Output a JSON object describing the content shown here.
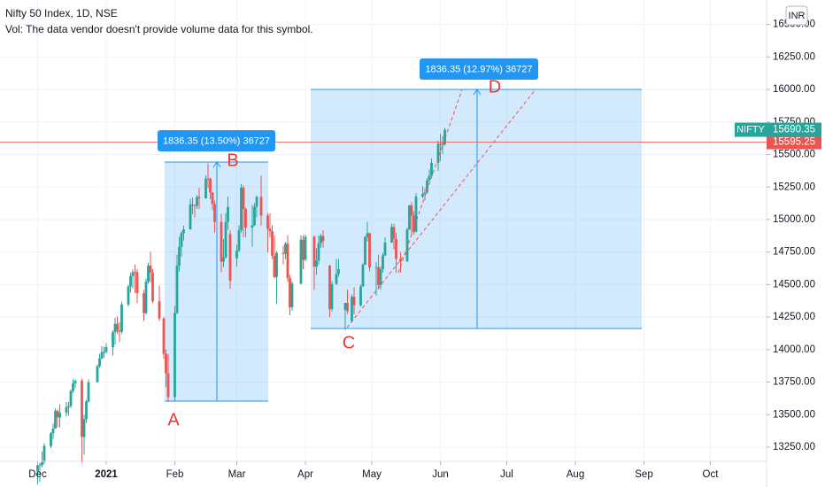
{
  "header": {
    "title": "Nifty 50 Index, 1D, NSE",
    "volume_note": "Vol: The data vendor doesn't provide volume data for this symbol.",
    "currency": "INR"
  },
  "chart_data": {
    "type": "candlestick",
    "symbol": "NIFTY",
    "last_price": 15690.35,
    "reference_price": 15595.25,
    "up_color": "#26a69a",
    "down_color": "#ef5350",
    "grid": true,
    "xlim": [
      -17,
      329.4
    ],
    "ylim": [
      13141,
      16688
    ],
    "xticks": [
      {
        "value": 0,
        "label": "Dec"
      },
      {
        "value": 31,
        "label": "2021"
      },
      {
        "value": 62,
        "label": "Feb"
      },
      {
        "value": 90,
        "label": "Mar"
      },
      {
        "value": 121,
        "label": "Apr"
      },
      {
        "value": 151,
        "label": "May"
      },
      {
        "value": 182,
        "label": "Jun"
      },
      {
        "value": 212,
        "label": "Jul"
      },
      {
        "value": 243,
        "label": "Aug"
      },
      {
        "value": 274,
        "label": "Sep"
      },
      {
        "value": 304,
        "label": "Oct"
      }
    ],
    "yticks": [
      {
        "value": 13250,
        "label": "13250.00"
      },
      {
        "value": 13500,
        "label": "13500.00"
      },
      {
        "value": 13750,
        "label": "13750.00"
      },
      {
        "value": 14000,
        "label": "14000.00"
      },
      {
        "value": 14250,
        "label": "14250.00"
      },
      {
        "value": 14500,
        "label": "14500.00"
      },
      {
        "value": 14750,
        "label": "14750.00"
      },
      {
        "value": 15000,
        "label": "15000.00"
      },
      {
        "value": 15250,
        "label": "15250.00"
      },
      {
        "value": 15500,
        "label": "15500.00"
      },
      {
        "value": 15750,
        "label": "15750.00"
      },
      {
        "value": 16000,
        "label": "16000.00"
      },
      {
        "value": 16250,
        "label": "16250.00"
      },
      {
        "value": 16500,
        "label": "16500.00"
      }
    ],
    "x": [
      0,
      1,
      2,
      3,
      6,
      7,
      8,
      9,
      10,
      13,
      14,
      15,
      16,
      17,
      20,
      21,
      22,
      23,
      27,
      28,
      29,
      30,
      31,
      34,
      35,
      36,
      37,
      38,
      41,
      42,
      43,
      44,
      45,
      48,
      49,
      50,
      51,
      52,
      55,
      57,
      58,
      59,
      62,
      63,
      64,
      65,
      66,
      69,
      70,
      71,
      72,
      73,
      76,
      77,
      78,
      79,
      80,
      83,
      84,
      85,
      86,
      87,
      90,
      91,
      92,
      93,
      94,
      97,
      98,
      99,
      101,
      104,
      105,
      106,
      107,
      108,
      111,
      112,
      113,
      114,
      115,
      119,
      120,
      121,
      125,
      126,
      127,
      128,
      129,
      132,
      133,
      135,
      136,
      139,
      140,
      142,
      143,
      146,
      147,
      148,
      149,
      150,
      153,
      154,
      155,
      156,
      157,
      160,
      161,
      162,
      164,
      167,
      168,
      169,
      170,
      171,
      174,
      175,
      176,
      177,
      178,
      181,
      182,
      183,
      184
    ],
    "open": [
      13062,
      13109,
      13113,
      13134,
      13259,
      13356,
      13393,
      13529,
      13478,
      13514,
      13558,
      13567,
      13682,
      13741,
      13761,
      13328,
      13466,
      13601,
      13749,
      13873,
      13932,
      13982,
      13982,
      14019,
      14133,
      14199,
      14146,
      14137,
      14347,
      14485,
      14564,
      14596,
      14595,
      14434,
      14281,
      14522,
      14645,
      14590,
      14372,
      14239,
      13968,
      13818,
      13635,
      14281,
      14647,
      14790,
      14896,
      14924,
      15116,
      15110,
      15106,
      15173,
      15163,
      15315,
      15314,
      15209,
      15119,
      14982,
      14676,
      14708,
      14982,
      14889,
      14702,
      14761,
      14919,
      15245,
      15081,
      14938,
      14956,
      15098,
      15174,
      15031,
      14929,
      14910,
      14721,
      14558,
      14744,
      14736,
      14814,
      14549,
      14325,
      14507,
      14845,
      14691,
      14867,
      14638,
      14684,
      14819,
      14873,
      14645,
      14311,
      14505,
      14581,
      14306,
      14359,
      14219,
      14406,
      14341,
      14485,
      14653,
      14865,
      14895,
      14631,
      14634,
      14496,
      14618,
      14724,
      14823,
      14942,
      14851,
      14697,
      14678,
      14923,
      15108,
      15030,
      14906,
      15176,
      15197,
      15208,
      15301,
      15338,
      15436,
      15583,
      15575,
      15577
    ],
    "high": [
      13128,
      13128,
      13217,
      13280,
      13366,
      13432,
      13548,
      13540,
      13579,
      13597,
      13597,
      13693,
      13773,
      13771,
      13777,
      13498,
      13613,
      13771,
      13885,
      13967,
      14025,
      14024,
      14050,
      14148,
      14244,
      14257,
      14211,
      14368,
      14498,
      14590,
      14617,
      14653,
      14618,
      14459,
      14547,
      14667,
      14753,
      14619,
      14492,
      14252,
      14001,
      13966,
      14336,
      14731,
      14868,
      14913,
      14953,
      15160,
      15168,
      15115,
      15188,
      15244,
      15340,
      15432,
      15324,
      15211,
      15144,
      15045,
      14850,
      15051,
      15176,
      14919,
      14806,
      14956,
      15273,
      15260,
      15092,
      15111,
      15126,
      15184,
      15337,
      15051,
      15047,
      14956,
      14875,
      14757,
      14798,
      14828,
      14878,
      14575,
      14526,
      14877,
      14877,
      14884,
      14879,
      14779,
      14879,
      14890,
      14918,
      14652,
      14528,
      14697,
      14697,
      14358,
      14461,
      14424,
      14479,
      14499,
      14667,
      14873,
      14983,
      14900,
      14673,
      14731,
      14639,
      14744,
      14863,
      14967,
      14966,
      14900,
      14749,
      14938,
      15114,
      15133,
      15063,
      15201,
      15256,
      15241,
      15319,
      15384,
      15469,
      15606,
      15660,
      15641,
      15705
    ],
    "low": [
      12963,
      12983,
      13097,
      13120,
      13241,
      13312,
      13392,
      13403,
      13402,
      13486,
      13493,
      13549,
      13665,
      13705,
      13131,
      13192,
      13437,
      13593,
      13749,
      13859,
      13925,
      13937,
      13970,
      13954,
      14040,
      14121,
      14058,
      14121,
      14330,
      14438,
      14471,
      14435,
      14357,
      14222,
      14271,
      14506,
      14517,
      14357,
      14218,
      13929,
      13713,
      13597,
      13601,
      14272,
      14600,
      14714,
      14840,
      14924,
      15041,
      15017,
      15081,
      15081,
      15160,
      15243,
      15157,
      15075,
      14899,
      14596,
      14635,
      14700,
      14921,
      14467,
      14638,
      14750,
      14900,
      14864,
      14863,
      14791,
      14950,
      15016,
      14954,
      14747,
      14862,
      14696,
      14546,
      14350,
      14655,
      14696,
      14522,
      14264,
      14300,
      14500,
      14617,
      14680,
      14460,
      14574,
      14652,
      14783,
      14785,
      14249,
      14293,
      14495,
      14560,
      14151,
      14273,
      14209,
      14273,
      14330,
      14484,
      14650,
      14831,
      14602,
      14416,
      14462,
      14461,
      14592,
      14720,
      14820,
      14771,
      14592,
      14591,
      14675,
      14920,
      14875,
      14884,
      14900,
      15165,
      15150,
      15200,
      15292,
      15321,
      15374,
      15451,
      15505,
      15570
    ],
    "close": [
      13109,
      13113,
      13134,
      13259,
      13356,
      13393,
      13529,
      13478,
      13514,
      13558,
      13567,
      13682,
      13741,
      13761,
      13328,
      13466,
      13601,
      13749,
      13873,
      13932,
      13982,
      13982,
      14019,
      14133,
      14199,
      14146,
      14137,
      14347,
      14485,
      14564,
      14596,
      14595,
      14434,
      14281,
      14522,
      14645,
      14590,
      14372,
      14239,
      13968,
      13818,
      13635,
      14281,
      14647,
      14790,
      14896,
      14924,
      15116,
      15110,
      15106,
      15173,
      15163,
      15315,
      15314,
      15209,
      15119,
      14982,
      14676,
      14708,
      14982,
      15097,
      14529,
      14761,
      14919,
      15245,
      15081,
      14938,
      14956,
      15098,
      15174,
      15031,
      14929,
      14910,
      14721,
      14558,
      14744,
      14736,
      14814,
      14549,
      14325,
      14507,
      14845,
      14691,
      14867,
      14638,
      14684,
      14819,
      14873,
      14835,
      14311,
      14505,
      14581,
      14618,
      14359,
      14296,
      14406,
      14341,
      14485,
      14653,
      14865,
      14895,
      14631,
      14634,
      14496,
      14618,
      14724,
      14823,
      14942,
      14851,
      14697,
      14678,
      14923,
      15108,
      15030,
      14906,
      15176,
      15197,
      15208,
      15301,
      15338,
      15436,
      15583,
      15575,
      15577,
      15690
    ],
    "measurements": [
      "1836.35 (13.50%) 36727",
      "1836.35 (12.97%) 36727"
    ],
    "annotations": [
      "A",
      "B",
      "C",
      "D"
    ]
  }
}
